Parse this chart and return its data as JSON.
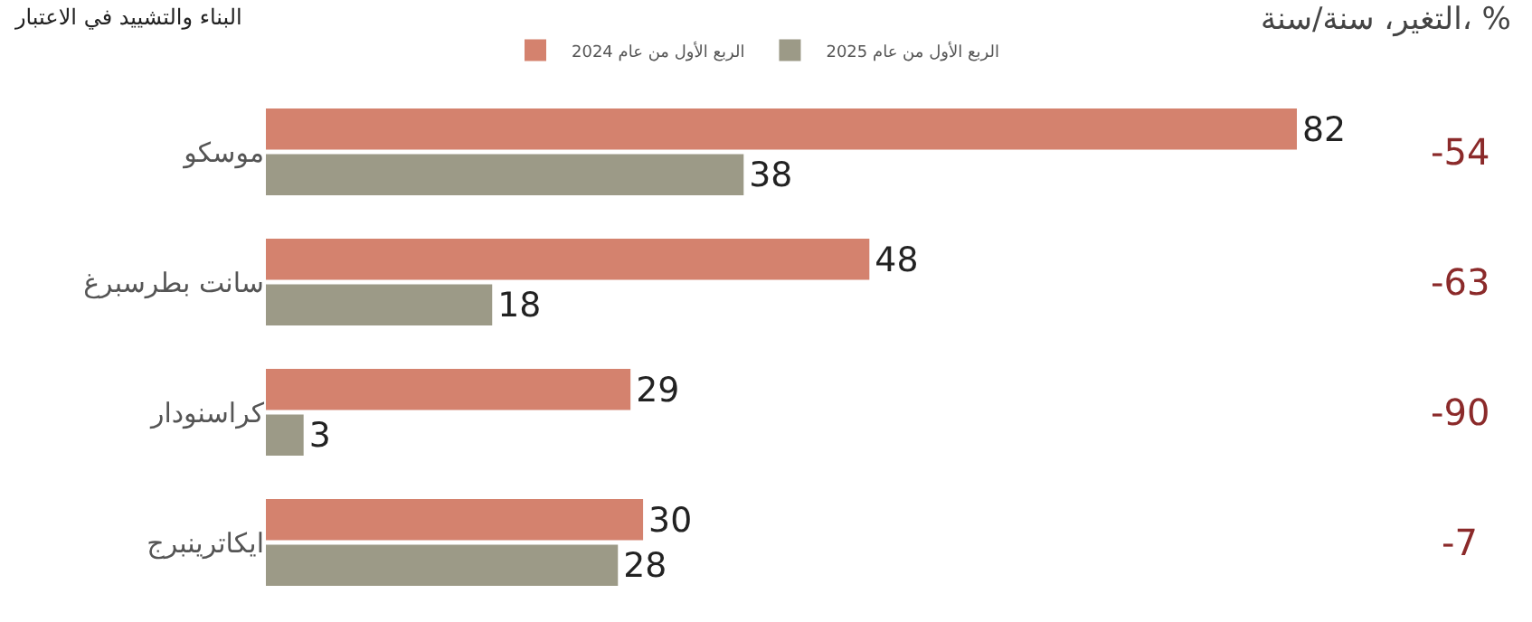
{
  "chart_data": {
    "type": "bar",
    "orientation": "horizontal",
    "title": "البناء والتشييد في الاعتبار",
    "categories": [
      "موسكو",
      "سانت بطرسبرغ",
      "كراسنودار",
      "ايكاترينبرج"
    ],
    "series": [
      {
        "name": "الربع الأول من عام 2024",
        "color": "#d4826e",
        "values": [
          82,
          48,
          29,
          30
        ]
      },
      {
        "name": "الربع الأول من عام 2025",
        "color": "#9c9a87",
        "values": [
          38,
          18,
          3,
          28
        ]
      }
    ],
    "data_labels": true,
    "legend": "top",
    "grid": false,
    "tick_labels": "y",
    "annotations": [
      "التغير، سنة/سنة، %",
      "-54",
      "-63",
      "-90",
      "-7"
    ]
  }
}
